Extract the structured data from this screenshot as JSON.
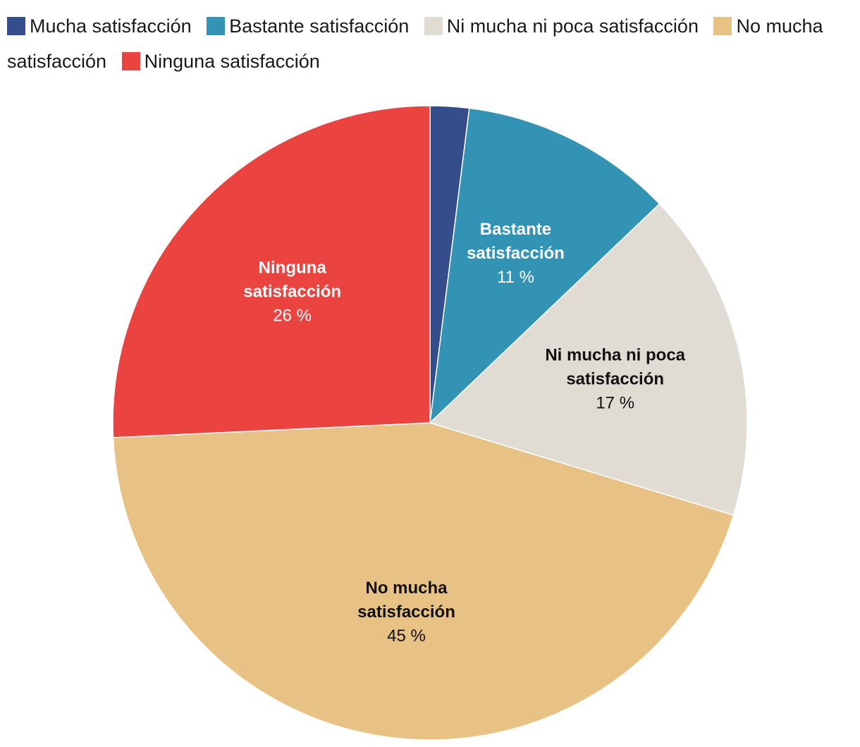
{
  "chart_data": {
    "type": "pie",
    "legend_position": "top",
    "categories": [
      "Mucha satisfacción",
      "Bastante satisfacción",
      "Ni mucha ni poca satisfacción",
      "No mucha satisfacción",
      "Ninguna satisfacción"
    ],
    "values": [
      2,
      11,
      17,
      45,
      26
    ],
    "colors": [
      "#364d8c",
      "#3393b5",
      "#e0dcd4",
      "#e8c184",
      "#ea4340"
    ],
    "data_labels": [
      null,
      {
        "lines": [
          "Bastante",
          "satisfacción"
        ],
        "value": "11 %"
      },
      {
        "lines": [
          "Ni mucha ni poca",
          "satisfacción"
        ],
        "value": "17 %"
      },
      {
        "lines": [
          "No mucha",
          "satisfacción"
        ],
        "value": "45 %"
      },
      {
        "lines": [
          "Ninguna",
          "satisfacción"
        ],
        "value": "26 %"
      }
    ],
    "label_colors": [
      "#ffffff",
      "#ffffff",
      "#111111",
      "#111111",
      "#ffffff"
    ]
  }
}
